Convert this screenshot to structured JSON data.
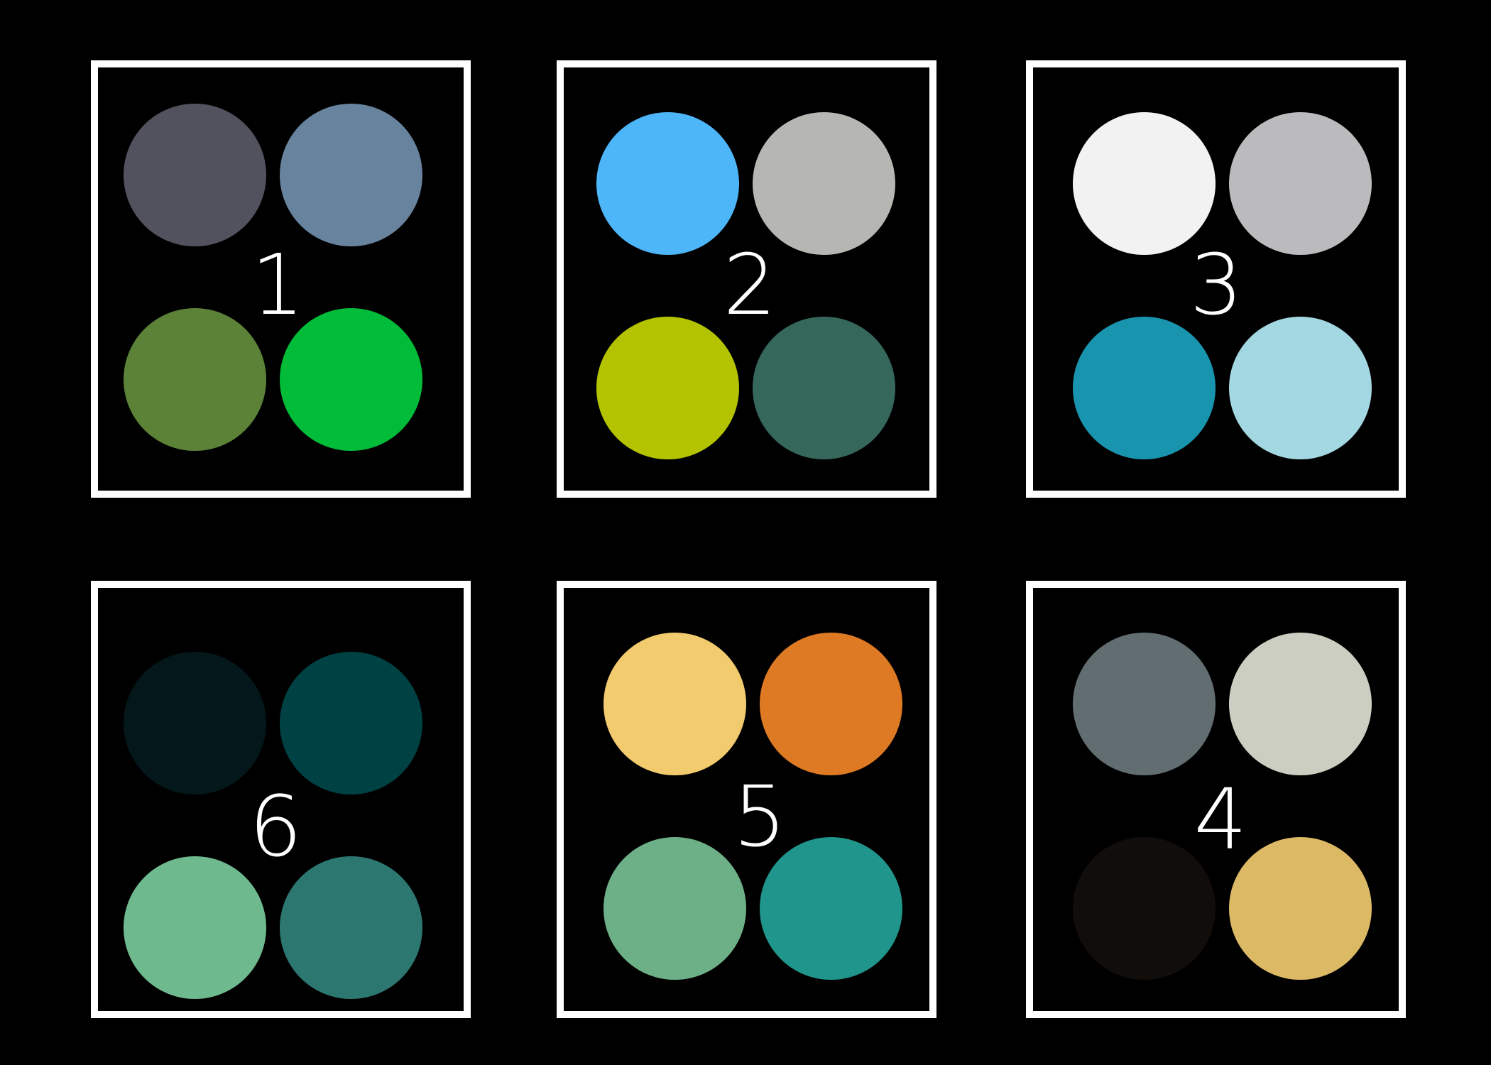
{
  "panels": [
    {
      "number": "1",
      "colors": [
        "#52525f",
        "#68839e",
        "#5c8238",
        "#00bc38"
      ]
    },
    {
      "number": "2",
      "colors": [
        "#4db6f8",
        "#b6b7b3",
        "#b3c300",
        "#35685b"
      ]
    },
    {
      "number": "3",
      "colors": [
        "#f2f2f2",
        "#bbbabd",
        "#1994ae",
        "#a3d7e2"
      ]
    },
    {
      "number": "6",
      "colors": [
        "#04171a",
        "#004143",
        "#6fb98e",
        "#2d7771"
      ]
    },
    {
      "number": "5",
      "colors": [
        "#f2cb6e",
        "#dd7a23",
        "#6daf86",
        "#1f958b"
      ]
    },
    {
      "number": "4",
      "colors": [
        "#616d71",
        "#cccec1",
        "#110d0b",
        "#dcb964"
      ]
    }
  ]
}
